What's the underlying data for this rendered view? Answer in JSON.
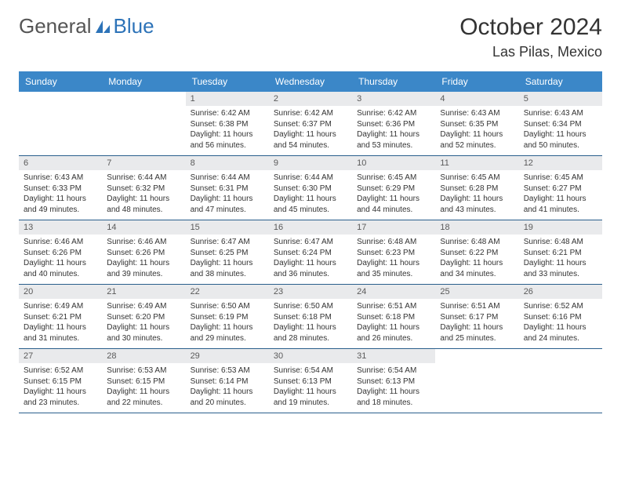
{
  "logo": {
    "text1": "General",
    "text2": "Blue",
    "shape_color": "#2d73b8",
    "text1_color": "#555555"
  },
  "title": "October 2024",
  "location": "Las Pilas, Mexico",
  "colors": {
    "header_bg": "#3b87c8",
    "header_text": "#ffffff",
    "daynum_bg": "#e9eaec",
    "daynum_text": "#5a5a5a",
    "border": "#2a5f8c",
    "body_text": "#333333"
  },
  "typography": {
    "title_fontsize": 30,
    "location_fontsize": 18,
    "dayheader_fontsize": 12,
    "cell_fontsize": 10
  },
  "day_headers": [
    "Sunday",
    "Monday",
    "Tuesday",
    "Wednesday",
    "Thursday",
    "Friday",
    "Saturday"
  ],
  "weeks": [
    [
      {
        "empty": true
      },
      {
        "empty": true
      },
      {
        "num": "1",
        "sunrise": "Sunrise: 6:42 AM",
        "sunset": "Sunset: 6:38 PM",
        "daylight": "Daylight: 11 hours and 56 minutes."
      },
      {
        "num": "2",
        "sunrise": "Sunrise: 6:42 AM",
        "sunset": "Sunset: 6:37 PM",
        "daylight": "Daylight: 11 hours and 54 minutes."
      },
      {
        "num": "3",
        "sunrise": "Sunrise: 6:42 AM",
        "sunset": "Sunset: 6:36 PM",
        "daylight": "Daylight: 11 hours and 53 minutes."
      },
      {
        "num": "4",
        "sunrise": "Sunrise: 6:43 AM",
        "sunset": "Sunset: 6:35 PM",
        "daylight": "Daylight: 11 hours and 52 minutes."
      },
      {
        "num": "5",
        "sunrise": "Sunrise: 6:43 AM",
        "sunset": "Sunset: 6:34 PM",
        "daylight": "Daylight: 11 hours and 50 minutes."
      }
    ],
    [
      {
        "num": "6",
        "sunrise": "Sunrise: 6:43 AM",
        "sunset": "Sunset: 6:33 PM",
        "daylight": "Daylight: 11 hours and 49 minutes."
      },
      {
        "num": "7",
        "sunrise": "Sunrise: 6:44 AM",
        "sunset": "Sunset: 6:32 PM",
        "daylight": "Daylight: 11 hours and 48 minutes."
      },
      {
        "num": "8",
        "sunrise": "Sunrise: 6:44 AM",
        "sunset": "Sunset: 6:31 PM",
        "daylight": "Daylight: 11 hours and 47 minutes."
      },
      {
        "num": "9",
        "sunrise": "Sunrise: 6:44 AM",
        "sunset": "Sunset: 6:30 PM",
        "daylight": "Daylight: 11 hours and 45 minutes."
      },
      {
        "num": "10",
        "sunrise": "Sunrise: 6:45 AM",
        "sunset": "Sunset: 6:29 PM",
        "daylight": "Daylight: 11 hours and 44 minutes."
      },
      {
        "num": "11",
        "sunrise": "Sunrise: 6:45 AM",
        "sunset": "Sunset: 6:28 PM",
        "daylight": "Daylight: 11 hours and 43 minutes."
      },
      {
        "num": "12",
        "sunrise": "Sunrise: 6:45 AM",
        "sunset": "Sunset: 6:27 PM",
        "daylight": "Daylight: 11 hours and 41 minutes."
      }
    ],
    [
      {
        "num": "13",
        "sunrise": "Sunrise: 6:46 AM",
        "sunset": "Sunset: 6:26 PM",
        "daylight": "Daylight: 11 hours and 40 minutes."
      },
      {
        "num": "14",
        "sunrise": "Sunrise: 6:46 AM",
        "sunset": "Sunset: 6:26 PM",
        "daylight": "Daylight: 11 hours and 39 minutes."
      },
      {
        "num": "15",
        "sunrise": "Sunrise: 6:47 AM",
        "sunset": "Sunset: 6:25 PM",
        "daylight": "Daylight: 11 hours and 38 minutes."
      },
      {
        "num": "16",
        "sunrise": "Sunrise: 6:47 AM",
        "sunset": "Sunset: 6:24 PM",
        "daylight": "Daylight: 11 hours and 36 minutes."
      },
      {
        "num": "17",
        "sunrise": "Sunrise: 6:48 AM",
        "sunset": "Sunset: 6:23 PM",
        "daylight": "Daylight: 11 hours and 35 minutes."
      },
      {
        "num": "18",
        "sunrise": "Sunrise: 6:48 AM",
        "sunset": "Sunset: 6:22 PM",
        "daylight": "Daylight: 11 hours and 34 minutes."
      },
      {
        "num": "19",
        "sunrise": "Sunrise: 6:48 AM",
        "sunset": "Sunset: 6:21 PM",
        "daylight": "Daylight: 11 hours and 33 minutes."
      }
    ],
    [
      {
        "num": "20",
        "sunrise": "Sunrise: 6:49 AM",
        "sunset": "Sunset: 6:21 PM",
        "daylight": "Daylight: 11 hours and 31 minutes."
      },
      {
        "num": "21",
        "sunrise": "Sunrise: 6:49 AM",
        "sunset": "Sunset: 6:20 PM",
        "daylight": "Daylight: 11 hours and 30 minutes."
      },
      {
        "num": "22",
        "sunrise": "Sunrise: 6:50 AM",
        "sunset": "Sunset: 6:19 PM",
        "daylight": "Daylight: 11 hours and 29 minutes."
      },
      {
        "num": "23",
        "sunrise": "Sunrise: 6:50 AM",
        "sunset": "Sunset: 6:18 PM",
        "daylight": "Daylight: 11 hours and 28 minutes."
      },
      {
        "num": "24",
        "sunrise": "Sunrise: 6:51 AM",
        "sunset": "Sunset: 6:18 PM",
        "daylight": "Daylight: 11 hours and 26 minutes."
      },
      {
        "num": "25",
        "sunrise": "Sunrise: 6:51 AM",
        "sunset": "Sunset: 6:17 PM",
        "daylight": "Daylight: 11 hours and 25 minutes."
      },
      {
        "num": "26",
        "sunrise": "Sunrise: 6:52 AM",
        "sunset": "Sunset: 6:16 PM",
        "daylight": "Daylight: 11 hours and 24 minutes."
      }
    ],
    [
      {
        "num": "27",
        "sunrise": "Sunrise: 6:52 AM",
        "sunset": "Sunset: 6:15 PM",
        "daylight": "Daylight: 11 hours and 23 minutes."
      },
      {
        "num": "28",
        "sunrise": "Sunrise: 6:53 AM",
        "sunset": "Sunset: 6:15 PM",
        "daylight": "Daylight: 11 hours and 22 minutes."
      },
      {
        "num": "29",
        "sunrise": "Sunrise: 6:53 AM",
        "sunset": "Sunset: 6:14 PM",
        "daylight": "Daylight: 11 hours and 20 minutes."
      },
      {
        "num": "30",
        "sunrise": "Sunrise: 6:54 AM",
        "sunset": "Sunset: 6:13 PM",
        "daylight": "Daylight: 11 hours and 19 minutes."
      },
      {
        "num": "31",
        "sunrise": "Sunrise: 6:54 AM",
        "sunset": "Sunset: 6:13 PM",
        "daylight": "Daylight: 11 hours and 18 minutes."
      },
      {
        "empty": true
      },
      {
        "empty": true
      }
    ]
  ]
}
